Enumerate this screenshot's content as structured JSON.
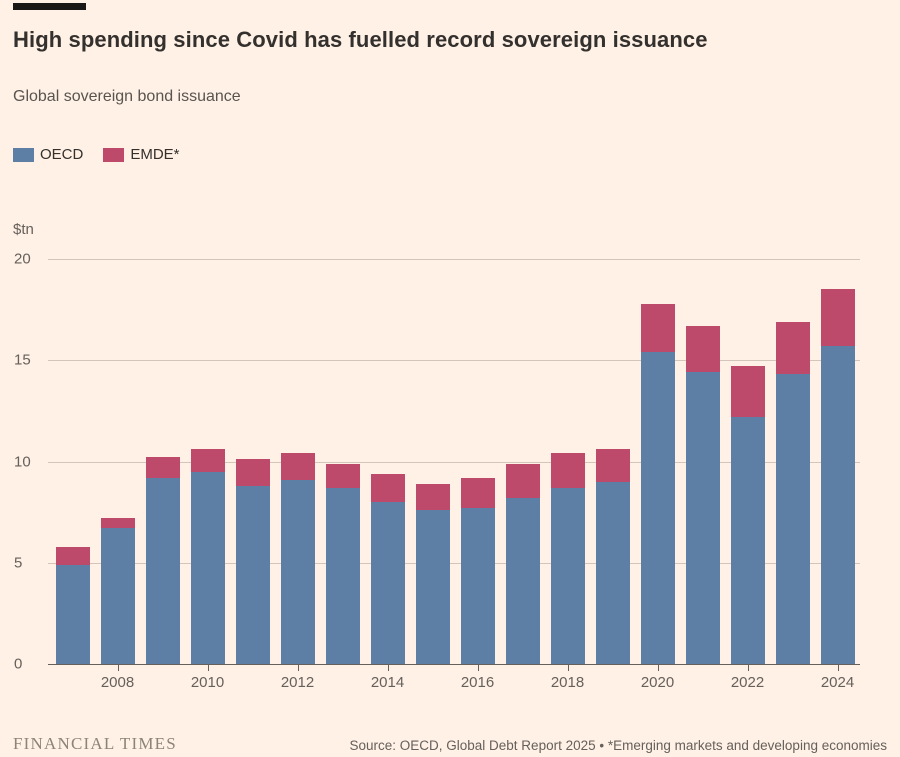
{
  "page": {
    "background_color": "#FFF1E5"
  },
  "header": {
    "title": "High spending since Covid has fuelled record sovereign issuance",
    "subtitle": "Global sovereign bond issuance"
  },
  "legend": [
    {
      "label": "OECD",
      "color": "#5D7FA6"
    },
    {
      "label": "EMDE*",
      "color": "#BE4A6B"
    }
  ],
  "chart_data": {
    "type": "bar",
    "stacked": true,
    "title": "Global sovereign bond issuance",
    "unit_label": "$tn",
    "categories": [
      2007,
      2008,
      2009,
      2010,
      2011,
      2012,
      2013,
      2014,
      2015,
      2016,
      2017,
      2018,
      2019,
      2020,
      2021,
      2022,
      2023,
      2024
    ],
    "series": [
      {
        "name": "OECD",
        "color": "#5D7FA6",
        "values": [
          4.9,
          6.7,
          9.2,
          9.5,
          8.8,
          9.1,
          8.7,
          8.0,
          7.6,
          7.7,
          8.2,
          8.7,
          9.0,
          15.4,
          14.4,
          12.2,
          14.3,
          15.7
        ]
      },
      {
        "name": "EMDE*",
        "color": "#BE4A6B",
        "values": [
          0.9,
          0.5,
          1.0,
          1.1,
          1.3,
          1.3,
          1.2,
          1.4,
          1.3,
          1.5,
          1.7,
          1.7,
          1.6,
          2.4,
          2.3,
          2.5,
          2.6,
          2.8
        ]
      }
    ],
    "ylim": [
      0,
      20
    ],
    "yticks": [
      0,
      5,
      10,
      15,
      20
    ],
    "xticklabels": [
      "2008",
      "2010",
      "2012",
      "2014",
      "2016",
      "2018",
      "2020",
      "2022",
      "2024"
    ],
    "grid": true,
    "legend_position": "top-left",
    "gridline_color": "#D2C6BA",
    "axis_color": "#66605C"
  },
  "footer": {
    "brand": "FINANCIAL TIMES",
    "source": "Source: OECD, Global Debt Report 2025 • *Emerging markets and developing economies"
  }
}
